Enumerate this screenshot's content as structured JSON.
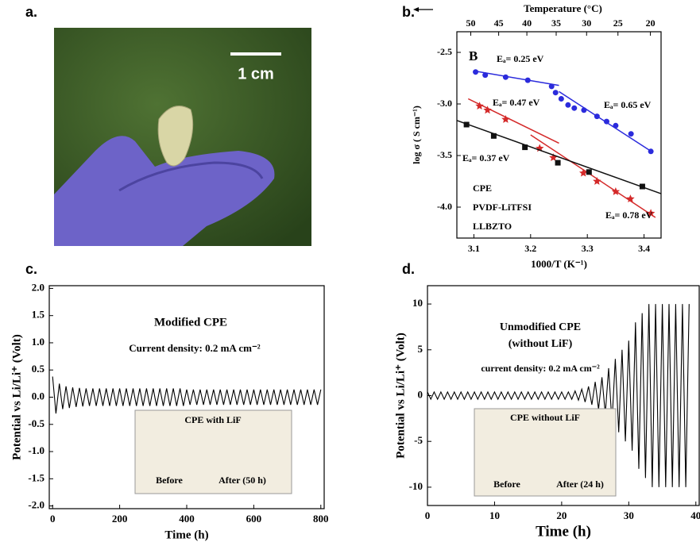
{
  "panels": [
    "a.",
    "b.",
    "c.",
    "d."
  ],
  "photo": {
    "scale_bar": "1 cm"
  },
  "chart_data": [
    {
      "type": "scatter",
      "xlabel": "1000/T (K⁻¹)",
      "ylabel": "log σ ( S cm⁻¹)",
      "xlim": [
        3.07,
        3.43
      ],
      "ylim": [
        -4.3,
        -2.3
      ],
      "xticks": [
        3.1,
        3.2,
        3.3,
        3.4
      ],
      "yticks": [
        -2.5,
        {
          "value": -3,
          "label": "-3.0"
        },
        -3.5,
        {
          "value": -4,
          "label": "-4.0"
        }
      ],
      "top_axis": {
        "label": "Temperature (°C)",
        "ticks": [
          {
            "value": 3.0945,
            "label": "50"
          },
          {
            "value": 3.1437,
            "label": "45"
          },
          {
            "value": 3.1934,
            "label": "40"
          },
          {
            "value": 3.2451,
            "label": "35"
          },
          {
            "value": 3.2987,
            "label": "30"
          },
          {
            "value": 3.354,
            "label": "25"
          },
          {
            "value": 3.4112,
            "label": "20"
          }
        ]
      },
      "legend": true,
      "series": [
        {
          "name": "CPE",
          "color": "#2b2bdc",
          "marker": "circle",
          "x": [
            3.103,
            3.12,
            3.156,
            3.195,
            3.237,
            3.244,
            3.254,
            3.266,
            3.277,
            3.294,
            3.317,
            3.334,
            3.35,
            3.377,
            3.412
          ],
          "values": [
            -2.69,
            -2.72,
            -2.74,
            -2.77,
            -2.83,
            -2.89,
            -2.95,
            -3.01,
            -3.04,
            -3.06,
            -3.12,
            -3.17,
            -3.21,
            -3.29,
            -3.46
          ],
          "fits": [
            [
              3.1,
              -2.68,
              3.25,
              -2.82
            ],
            [
              3.25,
              -2.88,
              3.41,
              -3.45
            ]
          ]
        },
        {
          "name": "PVDF-LiTFSI",
          "color": "#d42a2a",
          "marker": "star",
          "x": [
            3.11,
            3.124,
            3.156,
            3.216,
            3.24,
            3.293,
            3.317,
            3.35,
            3.376,
            3.412
          ],
          "values": [
            -3.02,
            -3.06,
            -3.15,
            -3.43,
            -3.52,
            -3.67,
            -3.75,
            -3.85,
            -3.92,
            -4.06
          ],
          "fits": [
            [
              3.09,
              -2.95,
              3.25,
              -3.38
            ],
            [
              3.2,
              -3.3,
              3.42,
              -4.1
            ]
          ]
        },
        {
          "name": "LLBZTO",
          "color": "#111111",
          "marker": "square",
          "x": [
            3.087,
            3.135,
            3.19,
            3.248,
            3.303,
            3.397
          ],
          "values": [
            -3.2,
            -3.31,
            -3.42,
            -3.57,
            -3.66,
            -3.8
          ],
          "fits": [
            [
              3.07,
              -3.16,
              3.43,
              -3.87
            ]
          ]
        }
      ],
      "annotations": [
        {
          "text": "B",
          "color": "#000000"
        },
        {
          "text": "Eₐ= 0.25 eV",
          "color": "#2b2bdc"
        },
        {
          "text": "Eₐ= 0.47 eV",
          "color": "#d42a2a"
        },
        {
          "text": "Eₐ= 0.65 eV",
          "color": "#2b2bdc"
        },
        {
          "text": "Eₐ= 0.37 eV",
          "color": "#111111"
        },
        {
          "text": "Eₐ= 0.78 eV",
          "color": "#d42a2a"
        }
      ]
    },
    {
      "type": "line",
      "xlabel": "Time (h)",
      "ylabel": "Potential vs Li/Li⁺ (Volt)",
      "xlim": [
        -10,
        810
      ],
      "ylim": [
        -2.05,
        2.05
      ],
      "xticks": [
        0,
        200,
        400,
        600,
        800
      ],
      "yticks": [
        {
          "value": -2,
          "label": "-2.0"
        },
        -1.5,
        {
          "value": -1,
          "label": "-1.0"
        },
        -0.5,
        {
          "value": 0,
          "label": "0.0"
        },
        0.5,
        {
          "value": 1,
          "label": "1.0"
        },
        1.5,
        {
          "value": 2,
          "label": "2.0"
        }
      ],
      "series": [
        {
          "color": "#000000",
          "x": [
            0,
            10,
            20,
            30,
            40,
            50,
            60,
            70,
            80,
            90,
            100,
            110,
            120,
            130,
            140,
            150,
            160,
            170,
            180,
            190,
            200,
            210,
            220,
            230,
            240,
            250,
            260,
            270,
            280,
            290,
            300,
            310,
            320,
            330,
            340,
            350,
            360,
            370,
            380,
            390,
            400,
            410,
            420,
            430,
            440,
            450,
            460,
            470,
            480,
            490,
            500,
            510,
            520,
            530,
            540,
            550,
            560,
            570,
            580,
            590,
            600,
            610,
            620,
            630,
            640,
            650,
            660,
            670,
            680,
            690,
            700,
            710,
            720,
            730,
            740,
            750,
            760,
            770,
            780,
            790,
            800
          ],
          "values": [
            0.38,
            -0.3,
            0.25,
            -0.22,
            0.2,
            -0.2,
            0.18,
            -0.18,
            0.17,
            -0.17,
            0.16,
            -0.16,
            0.16,
            -0.16,
            0.16,
            -0.16,
            0.16,
            -0.16,
            0.16,
            -0.16,
            0.16,
            -0.16,
            0.16,
            -0.16,
            0.16,
            -0.16,
            0.16,
            -0.16,
            0.16,
            -0.16,
            0.16,
            -0.16,
            0.16,
            -0.16,
            0.16,
            -0.16,
            0.16,
            -0.16,
            0.16,
            -0.16,
            0.14,
            -0.14,
            0.14,
            -0.14,
            0.14,
            -0.14,
            0.14,
            -0.14,
            0.14,
            -0.14,
            0.14,
            -0.14,
            0.14,
            -0.14,
            0.14,
            -0.14,
            0.14,
            -0.14,
            0.14,
            -0.14,
            0.14,
            -0.14,
            0.14,
            -0.14,
            0.14,
            -0.14,
            0.14,
            -0.14,
            0.14,
            -0.14,
            0.14,
            -0.14,
            0.14,
            -0.14,
            0.14,
            -0.14,
            0.14,
            -0.14,
            0.14,
            -0.14,
            0.14
          ]
        }
      ],
      "annotations": [
        {
          "text": "Modified CPE"
        },
        {
          "text": "Current density: 0.2 mA cm⁻²"
        }
      ],
      "inset": {
        "title": "CPE with LiF",
        "labels": [
          "Before",
          "After (50 h)"
        ]
      }
    },
    {
      "type": "line",
      "xlabel": "Time (h)",
      "ylabel": "Potential vs Li/Li⁺ (Volt)",
      "xlim": [
        0,
        40.5
      ],
      "ylim": [
        -12,
        12
      ],
      "xticks": [
        0,
        10,
        20,
        30,
        40
      ],
      "yticks": [
        -10,
        -5,
        0,
        5,
        10
      ],
      "series": [
        {
          "color": "#000000",
          "x": [
            0,
            0.5,
            1,
            1.5,
            2,
            2.5,
            3,
            3.5,
            4,
            4.5,
            5,
            5.5,
            6,
            6.5,
            7,
            7.5,
            8,
            8.5,
            9,
            9.5,
            10,
            10.5,
            11,
            11.5,
            12,
            12.5,
            13,
            13.5,
            14,
            14.5,
            15,
            15.5,
            16,
            16.5,
            17,
            17.5,
            18,
            18.5,
            19,
            19.5,
            20,
            20.5,
            21,
            21.5,
            22,
            22.5,
            23,
            23.5,
            24,
            24.5,
            25,
            25.5,
            26,
            26.5,
            27,
            27.5,
            28,
            28.5,
            29,
            29.5,
            30,
            30.5,
            31,
            31.5,
            32,
            32.5,
            33,
            33.5,
            34,
            34.5,
            35,
            35.5,
            36,
            36.5,
            37,
            37.5,
            38,
            38.5,
            39
          ],
          "values": [
            0.4,
            -0.4,
            0.4,
            -0.4,
            0.4,
            -0.4,
            0.4,
            -0.4,
            0.4,
            -0.4,
            0.4,
            -0.4,
            0.4,
            -0.4,
            0.4,
            -0.4,
            0.4,
            -0.4,
            0.4,
            -0.4,
            0.4,
            -0.4,
            0.4,
            -0.4,
            0.4,
            -0.4,
            0.4,
            -0.4,
            0.4,
            -0.4,
            0.4,
            -0.4,
            0.4,
            -0.4,
            0.4,
            -0.4,
            0.4,
            -0.4,
            0.4,
            -0.4,
            0.4,
            -0.4,
            0.4,
            -0.4,
            0.5,
            -0.5,
            0.7,
            -0.7,
            1,
            -1,
            1.5,
            -1.5,
            2,
            -2,
            3,
            -3,
            4,
            -4,
            5,
            -5,
            6,
            -6,
            8,
            -8,
            9,
            -9,
            10,
            -10,
            10,
            -10,
            10,
            -10,
            10,
            -10,
            10,
            -10,
            10,
            -10,
            10
          ]
        }
      ],
      "annotations": [
        {
          "text": "Unmodified CPE"
        },
        {
          "text": "(without LiF)"
        },
        {
          "text": "current density: 0.2 mA cm⁻²"
        }
      ],
      "inset": {
        "title": "CPE without LiF",
        "labels": [
          "Before",
          "After (24 h)"
        ]
      }
    }
  ]
}
